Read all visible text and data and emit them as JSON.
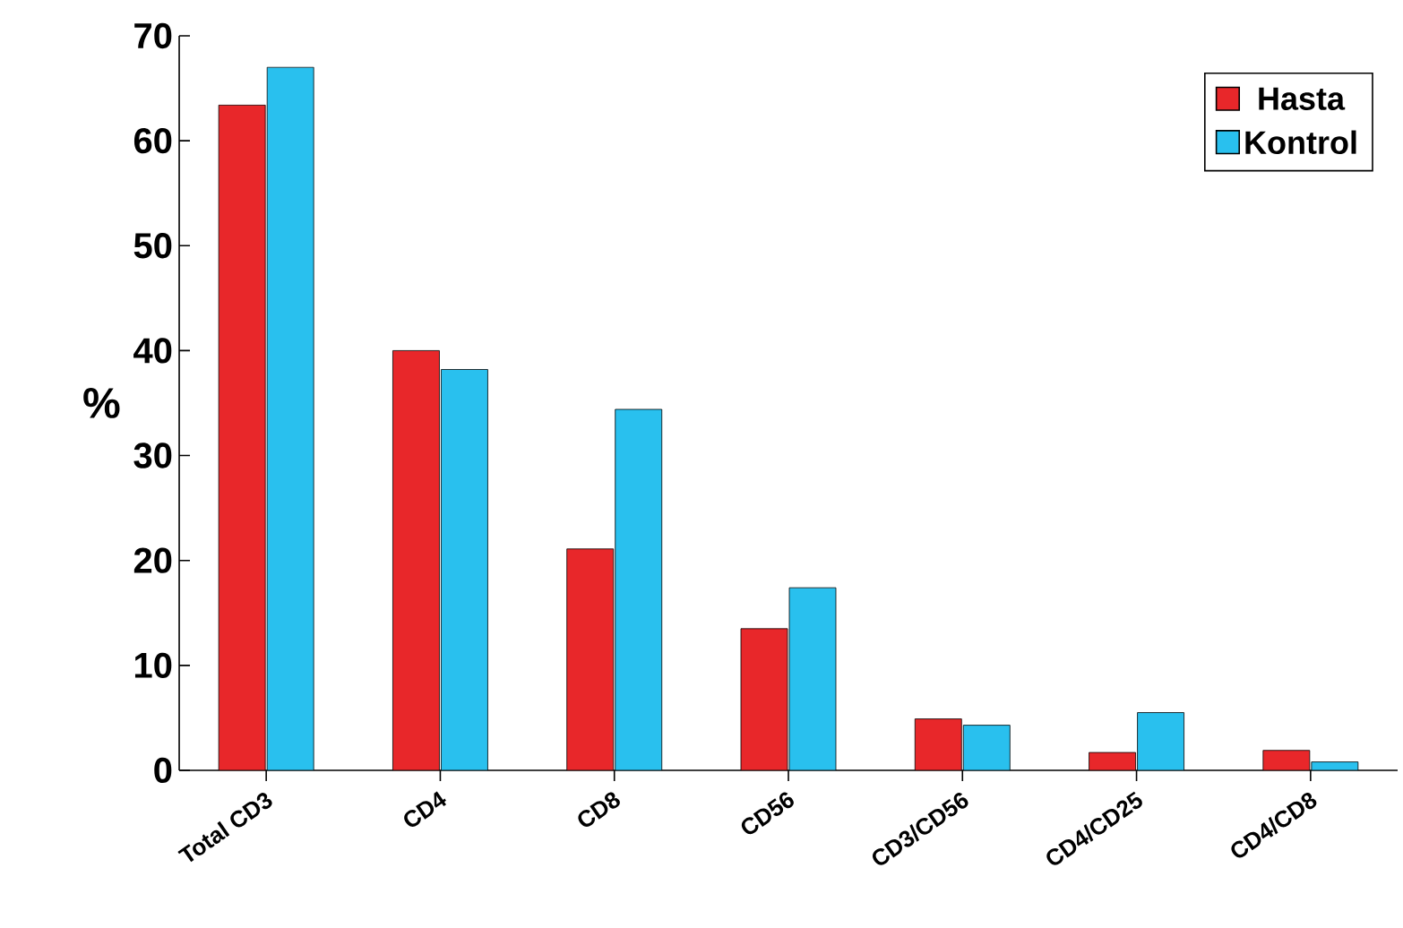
{
  "chart_data": {
    "type": "bar",
    "ylabel": "%",
    "categories": [
      "Total CD3",
      "CD4",
      "CD8",
      "CD56",
      "CD3/CD56",
      "CD4/CD25",
      "CD4/CD8"
    ],
    "series": [
      {
        "name": "Hasta",
        "color": "#e8272a",
        "values": [
          63.4,
          40.0,
          21.1,
          13.5,
          4.9,
          1.7,
          1.9
        ]
      },
      {
        "name": "Kontrol",
        "color": "#29c0ee",
        "values": [
          67.0,
          38.2,
          34.4,
          17.4,
          4.3,
          5.5,
          0.8
        ]
      }
    ],
    "ylim": [
      0,
      70
    ],
    "yticks": [
      0,
      10,
      20,
      30,
      40,
      50,
      60,
      70
    ],
    "legend": "top right",
    "grid": false
  }
}
